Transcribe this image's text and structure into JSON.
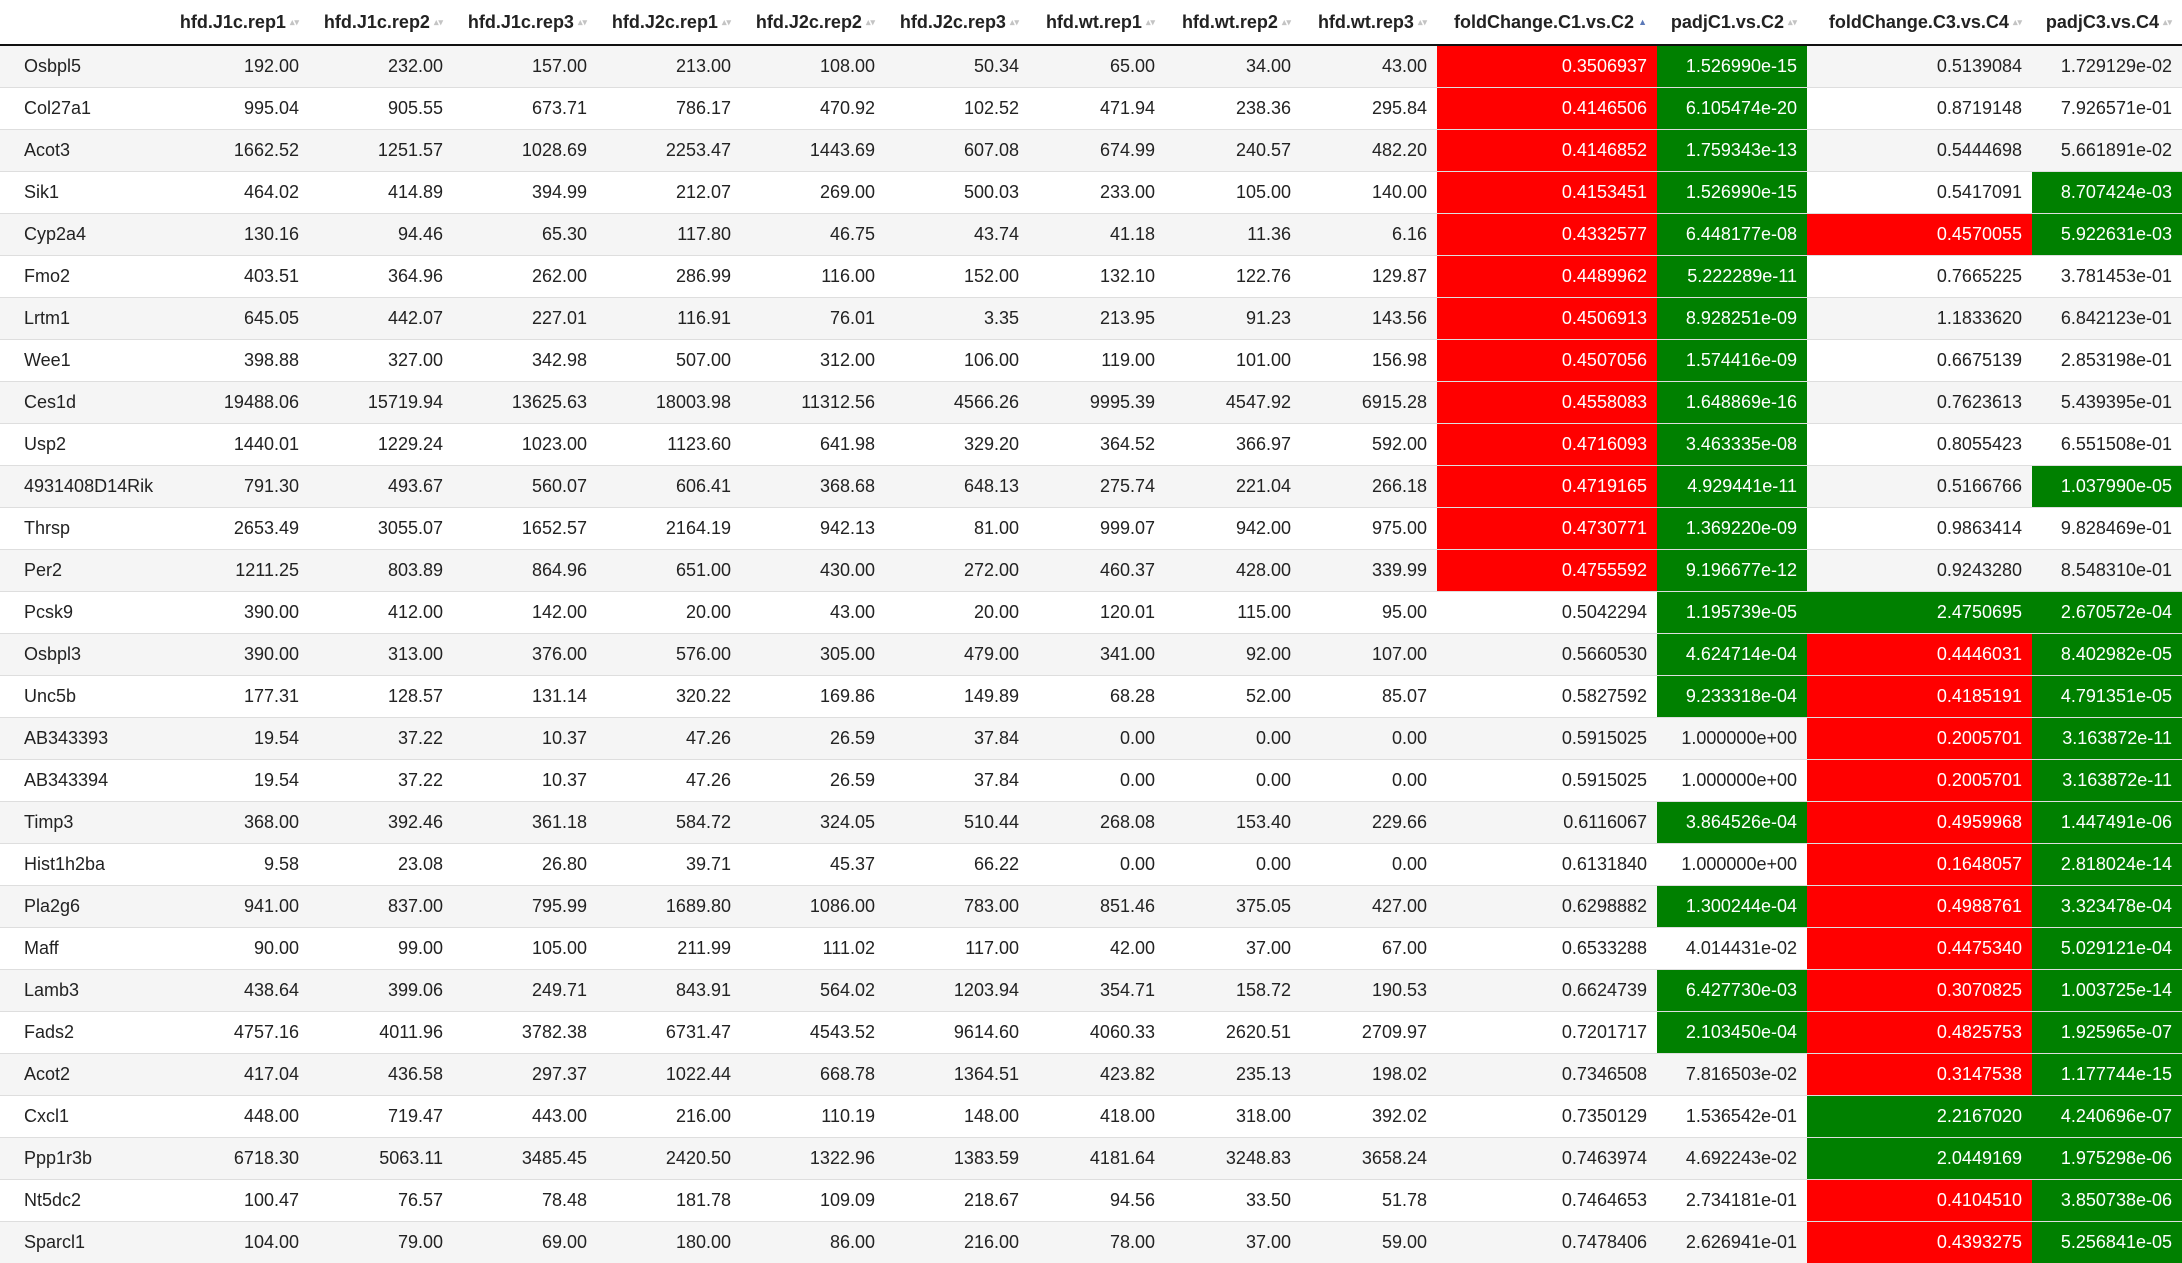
{
  "colors": {
    "red": "#ff0000",
    "green": "#008000",
    "sort_active": "#5b79b8"
  },
  "sort": {
    "column": 10,
    "direction": "asc"
  },
  "columns": [
    "",
    "hfd.J1c.rep1",
    "hfd.J1c.rep2",
    "hfd.J1c.rep3",
    "hfd.J2c.rep1",
    "hfd.J2c.rep2",
    "hfd.J2c.rep3",
    "hfd.wt.rep1",
    "hfd.wt.rep2",
    "hfd.wt.rep3",
    "foldChange.C1.vs.C2",
    "padjC1.vs.C2",
    "foldChange.C3.vs.C4",
    "padjC3.vs.C4"
  ],
  "rows": [
    {
      "cells": [
        "Osbpl5",
        "192.00",
        "232.00",
        "157.00",
        "213.00",
        "108.00",
        "50.34",
        "65.00",
        "34.00",
        "43.00",
        "0.3506937",
        "1.526990e-15",
        "0.5139084",
        "1.729129e-02"
      ],
      "hl": [
        "red",
        "green",
        "",
        ""
      ]
    },
    {
      "cells": [
        "Col27a1",
        "995.04",
        "905.55",
        "673.71",
        "786.17",
        "470.92",
        "102.52",
        "471.94",
        "238.36",
        "295.84",
        "0.4146506",
        "6.105474e-20",
        "0.8719148",
        "7.926571e-01"
      ],
      "hl": [
        "red",
        "green",
        "",
        ""
      ]
    },
    {
      "cells": [
        "Acot3",
        "1662.52",
        "1251.57",
        "1028.69",
        "2253.47",
        "1443.69",
        "607.08",
        "674.99",
        "240.57",
        "482.20",
        "0.4146852",
        "1.759343e-13",
        "0.5444698",
        "5.661891e-02"
      ],
      "hl": [
        "red",
        "green",
        "",
        ""
      ]
    },
    {
      "cells": [
        "Sik1",
        "464.02",
        "414.89",
        "394.99",
        "212.07",
        "269.00",
        "500.03",
        "233.00",
        "105.00",
        "140.00",
        "0.4153451",
        "1.526990e-15",
        "0.5417091",
        "8.707424e-03"
      ],
      "hl": [
        "red",
        "green",
        "",
        "green"
      ]
    },
    {
      "cells": [
        "Cyp2a4",
        "130.16",
        "94.46",
        "65.30",
        "117.80",
        "46.75",
        "43.74",
        "41.18",
        "11.36",
        "6.16",
        "0.4332577",
        "6.448177e-08",
        "0.4570055",
        "5.922631e-03"
      ],
      "hl": [
        "red",
        "green",
        "red",
        "green"
      ]
    },
    {
      "cells": [
        "Fmo2",
        "403.51",
        "364.96",
        "262.00",
        "286.99",
        "116.00",
        "152.00",
        "132.10",
        "122.76",
        "129.87",
        "0.4489962",
        "5.222289e-11",
        "0.7665225",
        "3.781453e-01"
      ],
      "hl": [
        "red",
        "green",
        "",
        ""
      ]
    },
    {
      "cells": [
        "Lrtm1",
        "645.05",
        "442.07",
        "227.01",
        "116.91",
        "76.01",
        "3.35",
        "213.95",
        "91.23",
        "143.56",
        "0.4506913",
        "8.928251e-09",
        "1.1833620",
        "6.842123e-01"
      ],
      "hl": [
        "red",
        "green",
        "",
        ""
      ]
    },
    {
      "cells": [
        "Wee1",
        "398.88",
        "327.00",
        "342.98",
        "507.00",
        "312.00",
        "106.00",
        "119.00",
        "101.00",
        "156.98",
        "0.4507056",
        "1.574416e-09",
        "0.6675139",
        "2.853198e-01"
      ],
      "hl": [
        "red",
        "green",
        "",
        ""
      ]
    },
    {
      "cells": [
        "Ces1d",
        "19488.06",
        "15719.94",
        "13625.63",
        "18003.98",
        "11312.56",
        "4566.26",
        "9995.39",
        "4547.92",
        "6915.28",
        "0.4558083",
        "1.648869e-16",
        "0.7623613",
        "5.439395e-01"
      ],
      "hl": [
        "red",
        "green",
        "",
        ""
      ]
    },
    {
      "cells": [
        "Usp2",
        "1440.01",
        "1229.24",
        "1023.00",
        "1123.60",
        "641.98",
        "329.20",
        "364.52",
        "366.97",
        "592.00",
        "0.4716093",
        "3.463335e-08",
        "0.8055423",
        "6.551508e-01"
      ],
      "hl": [
        "red",
        "green",
        "",
        ""
      ]
    },
    {
      "cells": [
        "4931408D14Rik",
        "791.30",
        "493.67",
        "560.07",
        "606.41",
        "368.68",
        "648.13",
        "275.74",
        "221.04",
        "266.18",
        "0.4719165",
        "4.929441e-11",
        "0.5166766",
        "1.037990e-05"
      ],
      "hl": [
        "red",
        "green",
        "",
        "green"
      ]
    },
    {
      "cells": [
        "Thrsp",
        "2653.49",
        "3055.07",
        "1652.57",
        "2164.19",
        "942.13",
        "81.00",
        "999.07",
        "942.00",
        "975.00",
        "0.4730771",
        "1.369220e-09",
        "0.9863414",
        "9.828469e-01"
      ],
      "hl": [
        "red",
        "green",
        "",
        ""
      ]
    },
    {
      "cells": [
        "Per2",
        "1211.25",
        "803.89",
        "864.96",
        "651.00",
        "430.00",
        "272.00",
        "460.37",
        "428.00",
        "339.99",
        "0.4755592",
        "9.196677e-12",
        "0.9243280",
        "8.548310e-01"
      ],
      "hl": [
        "red",
        "green",
        "",
        ""
      ]
    },
    {
      "cells": [
        "Pcsk9",
        "390.00",
        "412.00",
        "142.00",
        "20.00",
        "43.00",
        "20.00",
        "120.01",
        "115.00",
        "95.00",
        "0.5042294",
        "1.195739e-05",
        "2.4750695",
        "2.670572e-04"
      ],
      "hl": [
        "",
        "green",
        "green",
        "green"
      ]
    },
    {
      "cells": [
        "Osbpl3",
        "390.00",
        "313.00",
        "376.00",
        "576.00",
        "305.00",
        "479.00",
        "341.00",
        "92.00",
        "107.00",
        "0.5660530",
        "4.624714e-04",
        "0.4446031",
        "8.402982e-05"
      ],
      "hl": [
        "",
        "green",
        "red",
        "green"
      ]
    },
    {
      "cells": [
        "Unc5b",
        "177.31",
        "128.57",
        "131.14",
        "320.22",
        "169.86",
        "149.89",
        "68.28",
        "52.00",
        "85.07",
        "0.5827592",
        "9.233318e-04",
        "0.4185191",
        "4.791351e-05"
      ],
      "hl": [
        "",
        "green",
        "red",
        "green"
      ]
    },
    {
      "cells": [
        "AB343393",
        "19.54",
        "37.22",
        "10.37",
        "47.26",
        "26.59",
        "37.84",
        "0.00",
        "0.00",
        "0.00",
        "0.5915025",
        "1.000000e+00",
        "0.2005701",
        "3.163872e-11"
      ],
      "hl": [
        "",
        "",
        "red",
        "green"
      ]
    },
    {
      "cells": [
        "AB343394",
        "19.54",
        "37.22",
        "10.37",
        "47.26",
        "26.59",
        "37.84",
        "0.00",
        "0.00",
        "0.00",
        "0.5915025",
        "1.000000e+00",
        "0.2005701",
        "3.163872e-11"
      ],
      "hl": [
        "",
        "",
        "red",
        "green"
      ]
    },
    {
      "cells": [
        "Timp3",
        "368.00",
        "392.46",
        "361.18",
        "584.72",
        "324.05",
        "510.44",
        "268.08",
        "153.40",
        "229.66",
        "0.6116067",
        "3.864526e-04",
        "0.4959968",
        "1.447491e-06"
      ],
      "hl": [
        "",
        "green",
        "red",
        "green"
      ]
    },
    {
      "cells": [
        "Hist1h2ba",
        "9.58",
        "23.08",
        "26.80",
        "39.71",
        "45.37",
        "66.22",
        "0.00",
        "0.00",
        "0.00",
        "0.6131840",
        "1.000000e+00",
        "0.1648057",
        "2.818024e-14"
      ],
      "hl": [
        "",
        "",
        "red",
        "green"
      ]
    },
    {
      "cells": [
        "Pla2g6",
        "941.00",
        "837.00",
        "795.99",
        "1689.80",
        "1086.00",
        "783.00",
        "851.46",
        "375.05",
        "427.00",
        "0.6298882",
        "1.300244e-04",
        "0.4988761",
        "3.323478e-04"
      ],
      "hl": [
        "",
        "green",
        "red",
        "green"
      ]
    },
    {
      "cells": [
        "Maff",
        "90.00",
        "99.00",
        "105.00",
        "211.99",
        "111.02",
        "117.00",
        "42.00",
        "37.00",
        "67.00",
        "0.6533288",
        "4.014431e-02",
        "0.4475340",
        "5.029121e-04"
      ],
      "hl": [
        "",
        "",
        "red",
        "green"
      ]
    },
    {
      "cells": [
        "Lamb3",
        "438.64",
        "399.06",
        "249.71",
        "843.91",
        "564.02",
        "1203.94",
        "354.71",
        "158.72",
        "190.53",
        "0.6624739",
        "6.427730e-03",
        "0.3070825",
        "1.003725e-14"
      ],
      "hl": [
        "",
        "green",
        "red",
        "green"
      ]
    },
    {
      "cells": [
        "Fads2",
        "4757.16",
        "4011.96",
        "3782.38",
        "6731.47",
        "4543.52",
        "9614.60",
        "4060.33",
        "2620.51",
        "2709.97",
        "0.7201717",
        "2.103450e-04",
        "0.4825753",
        "1.925965e-07"
      ],
      "hl": [
        "",
        "green",
        "red",
        "green"
      ]
    },
    {
      "cells": [
        "Acot2",
        "417.04",
        "436.58",
        "297.37",
        "1022.44",
        "668.78",
        "1364.51",
        "423.82",
        "235.13",
        "198.02",
        "0.7346508",
        "7.816503e-02",
        "0.3147538",
        "1.177744e-15"
      ],
      "hl": [
        "",
        "",
        "red",
        "green"
      ]
    },
    {
      "cells": [
        "Cxcl1",
        "448.00",
        "719.47",
        "443.00",
        "216.00",
        "110.19",
        "148.00",
        "418.00",
        "318.00",
        "392.02",
        "0.7350129",
        "1.536542e-01",
        "2.2167020",
        "4.240696e-07"
      ],
      "hl": [
        "",
        "",
        "green",
        "green"
      ]
    },
    {
      "cells": [
        "Ppp1r3b",
        "6718.30",
        "5063.11",
        "3485.45",
        "2420.50",
        "1322.96",
        "1383.59",
        "4181.64",
        "3248.83",
        "3658.24",
        "0.7463974",
        "4.692243e-02",
        "2.0449169",
        "1.975298e-06"
      ],
      "hl": [
        "",
        "",
        "green",
        "green"
      ]
    },
    {
      "cells": [
        "Nt5dc2",
        "100.47",
        "76.57",
        "78.48",
        "181.78",
        "109.09",
        "218.67",
        "94.56",
        "33.50",
        "51.78",
        "0.7464653",
        "2.734181e-01",
        "0.4104510",
        "3.850738e-06"
      ],
      "hl": [
        "",
        "",
        "red",
        "green"
      ]
    },
    {
      "cells": [
        "Sparcl1",
        "104.00",
        "79.00",
        "69.00",
        "180.00",
        "86.00",
        "216.00",
        "78.00",
        "37.00",
        "59.00",
        "0.7478406",
        "2.626941e-01",
        "0.4393275",
        "5.256841e-05"
      ],
      "hl": [
        "",
        "",
        "red",
        "green"
      ]
    }
  ]
}
